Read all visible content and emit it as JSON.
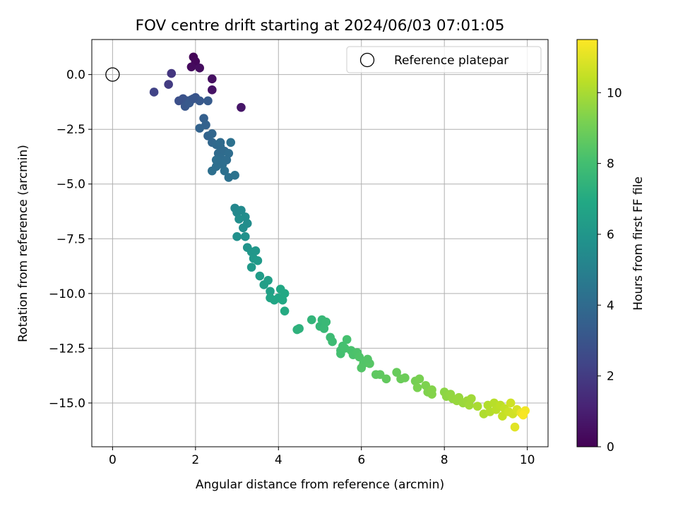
{
  "chart_data": {
    "type": "scatter",
    "title": "FOV centre drift starting at 2024/06/03 07:01:05",
    "xlabel": "Angular distance from reference (arcmin)",
    "ylabel": "Rotation from reference (arcmin)",
    "xlim": [
      -0.5,
      10.5
    ],
    "ylim": [
      -17,
      1.6
    ],
    "xticks": [
      0,
      2,
      4,
      6,
      8,
      10
    ],
    "yticks": [
      0.0,
      -2.5,
      -5.0,
      -7.5,
      -10.0,
      -12.5,
      -15.0
    ],
    "xtick_labels": [
      "0",
      "2",
      "4",
      "6",
      "8",
      "10"
    ],
    "ytick_labels": [
      "0.0",
      "−2.5",
      "−5.0",
      "−7.5",
      "−10.0",
      "−12.5",
      "−15.0"
    ],
    "grid": true,
    "legend": {
      "position": "top-right",
      "entries": [
        {
          "label": "Reference platepar",
          "marker": "open-circle"
        }
      ]
    },
    "reference_point": {
      "x": 0,
      "y": 0
    },
    "colorbar": {
      "label": "Hours from first FF file",
      "colormap": "viridis",
      "range": [
        0,
        11.5
      ],
      "ticks": [
        0,
        2,
        4,
        6,
        8,
        10
      ],
      "tick_labels": [
        "0",
        "2",
        "4",
        "6",
        "8",
        "10"
      ]
    },
    "points": [
      [
        1.95,
        0.8,
        0.1
      ],
      [
        2.0,
        0.6,
        0.2
      ],
      [
        1.9,
        0.35,
        0.3
      ],
      [
        2.1,
        0.3,
        0.4
      ],
      [
        2.4,
        -0.2,
        0.5
      ],
      [
        2.4,
        -0.7,
        0.6
      ],
      [
        3.1,
        -1.5,
        0.7
      ],
      [
        1.42,
        0.05,
        1.8
      ],
      [
        1.35,
        -0.45,
        2.0
      ],
      [
        1.0,
        -0.8,
        2.3
      ],
      [
        1.6,
        -1.2,
        2.8
      ],
      [
        1.7,
        -1.1,
        2.9
      ],
      [
        1.8,
        -1.2,
        3.0
      ],
      [
        1.9,
        -1.15,
        3.1
      ],
      [
        2.0,
        -1.05,
        3.0
      ],
      [
        1.75,
        -1.45,
        3.1
      ],
      [
        2.1,
        -1.2,
        3.2
      ],
      [
        2.3,
        -1.2,
        3.3
      ],
      [
        1.85,
        -1.3,
        3.2
      ],
      [
        1.95,
        -1.1,
        3.05
      ],
      [
        2.2,
        -2.0,
        3.5
      ],
      [
        2.25,
        -2.3,
        3.6
      ],
      [
        2.1,
        -2.45,
        3.65
      ],
      [
        2.3,
        -2.8,
        3.7
      ],
      [
        2.4,
        -2.7,
        3.75
      ],
      [
        2.4,
        -3.1,
        3.8
      ],
      [
        2.5,
        -3.2,
        3.9
      ],
      [
        2.6,
        -3.3,
        3.95
      ],
      [
        2.55,
        -3.6,
        4.0
      ],
      [
        2.7,
        -3.5,
        4.0
      ],
      [
        2.6,
        -3.8,
        4.05
      ],
      [
        2.8,
        -3.6,
        4.1
      ],
      [
        2.75,
        -3.9,
        4.1
      ],
      [
        2.65,
        -4.1,
        4.15
      ],
      [
        2.5,
        -4.2,
        4.2
      ],
      [
        2.4,
        -4.4,
        4.2
      ],
      [
        2.7,
        -4.4,
        4.25
      ],
      [
        2.8,
        -4.7,
        4.3
      ],
      [
        2.95,
        -4.6,
        4.35
      ],
      [
        2.85,
        -3.1,
        4.3
      ],
      [
        2.6,
        -3.1,
        4.0
      ],
      [
        2.5,
        -3.9,
        4.2
      ],
      [
        2.95,
        -6.1,
        5.3
      ],
      [
        3.0,
        -6.3,
        5.4
      ],
      [
        3.1,
        -6.2,
        5.45
      ],
      [
        3.2,
        -6.5,
        5.5
      ],
      [
        3.25,
        -6.8,
        5.55
      ],
      [
        3.15,
        -7.0,
        5.6
      ],
      [
        3.05,
        -6.6,
        5.6
      ],
      [
        3.0,
        -7.4,
        5.7
      ],
      [
        3.2,
        -7.4,
        5.75
      ],
      [
        3.25,
        -7.9,
        5.9
      ],
      [
        3.35,
        -8.1,
        6.0
      ],
      [
        3.45,
        -8.05,
        6.05
      ],
      [
        3.4,
        -8.4,
        6.1
      ],
      [
        3.35,
        -8.8,
        6.15
      ],
      [
        3.5,
        -8.5,
        6.2
      ],
      [
        3.55,
        -9.2,
        6.3
      ],
      [
        3.65,
        -9.6,
        6.4
      ],
      [
        3.75,
        -9.4,
        6.45
      ],
      [
        3.8,
        -9.9,
        6.5
      ],
      [
        3.8,
        -10.2,
        6.7
      ],
      [
        3.9,
        -10.3,
        6.75
      ],
      [
        4.0,
        -10.2,
        6.8
      ],
      [
        4.05,
        -9.8,
        6.85
      ],
      [
        4.15,
        -10.0,
        6.9
      ],
      [
        4.1,
        -10.3,
        6.9
      ],
      [
        4.15,
        -10.8,
        7.0
      ],
      [
        4.5,
        -11.6,
        7.3
      ],
      [
        4.45,
        -11.65,
        7.35
      ],
      [
        4.8,
        -11.2,
        7.5
      ],
      [
        5.0,
        -11.5,
        7.6
      ],
      [
        5.05,
        -11.2,
        7.65
      ],
      [
        5.1,
        -11.6,
        7.7
      ],
      [
        5.15,
        -11.3,
        7.7
      ],
      [
        5.25,
        -12.0,
        7.8
      ],
      [
        5.3,
        -12.2,
        7.85
      ],
      [
        5.5,
        -12.6,
        8.0
      ],
      [
        5.55,
        -12.4,
        8.05
      ],
      [
        5.5,
        -12.75,
        8.05
      ],
      [
        5.65,
        -12.1,
        8.1
      ],
      [
        5.6,
        -12.5,
        8.1
      ],
      [
        5.75,
        -12.6,
        8.15
      ],
      [
        5.8,
        -12.8,
        8.2
      ],
      [
        5.9,
        -12.7,
        8.25
      ],
      [
        5.95,
        -12.9,
        8.3
      ],
      [
        6.05,
        -13.2,
        8.35
      ],
      [
        6.0,
        -13.4,
        8.4
      ],
      [
        6.2,
        -13.2,
        8.45
      ],
      [
        6.15,
        -13.0,
        8.4
      ],
      [
        6.35,
        -13.7,
        8.6
      ],
      [
        6.45,
        -13.7,
        8.65
      ],
      [
        6.6,
        -13.9,
        8.7
      ],
      [
        6.85,
        -13.6,
        8.8
      ],
      [
        6.95,
        -13.9,
        8.85
      ],
      [
        7.05,
        -13.85,
        8.9
      ],
      [
        7.3,
        -14.0,
        9.1
      ],
      [
        7.4,
        -13.9,
        9.15
      ],
      [
        7.35,
        -14.3,
        9.2
      ],
      [
        7.55,
        -14.2,
        9.25
      ],
      [
        7.6,
        -14.5,
        9.3
      ],
      [
        7.7,
        -14.4,
        9.35
      ],
      [
        7.7,
        -14.6,
        9.35
      ],
      [
        8.0,
        -14.5,
        9.5
      ],
      [
        8.05,
        -14.7,
        9.55
      ],
      [
        8.15,
        -14.6,
        9.6
      ],
      [
        8.2,
        -14.8,
        9.65
      ],
      [
        8.3,
        -14.9,
        9.7
      ],
      [
        8.35,
        -14.75,
        9.7
      ],
      [
        8.45,
        -15.0,
        9.75
      ],
      [
        8.55,
        -14.9,
        9.8
      ],
      [
        8.6,
        -15.1,
        9.85
      ],
      [
        8.65,
        -14.8,
        9.85
      ],
      [
        8.8,
        -15.15,
        10.0
      ],
      [
        8.95,
        -15.5,
        10.1
      ],
      [
        9.05,
        -15.1,
        10.15
      ],
      [
        9.1,
        -15.4,
        10.2
      ],
      [
        9.2,
        -15.0,
        10.25
      ],
      [
        9.25,
        -15.3,
        10.3
      ],
      [
        9.35,
        -15.1,
        10.35
      ],
      [
        9.45,
        -15.25,
        10.45
      ],
      [
        9.4,
        -15.6,
        10.5
      ],
      [
        9.55,
        -15.4,
        10.6
      ],
      [
        9.6,
        -15.0,
        10.65
      ],
      [
        9.65,
        -15.5,
        10.7
      ],
      [
        9.75,
        -15.3,
        10.8
      ],
      [
        9.7,
        -16.1,
        11.0
      ],
      [
        9.85,
        -15.45,
        11.2
      ],
      [
        9.95,
        -15.35,
        11.3
      ],
      [
        9.9,
        -15.55,
        11.4
      ]
    ]
  }
}
